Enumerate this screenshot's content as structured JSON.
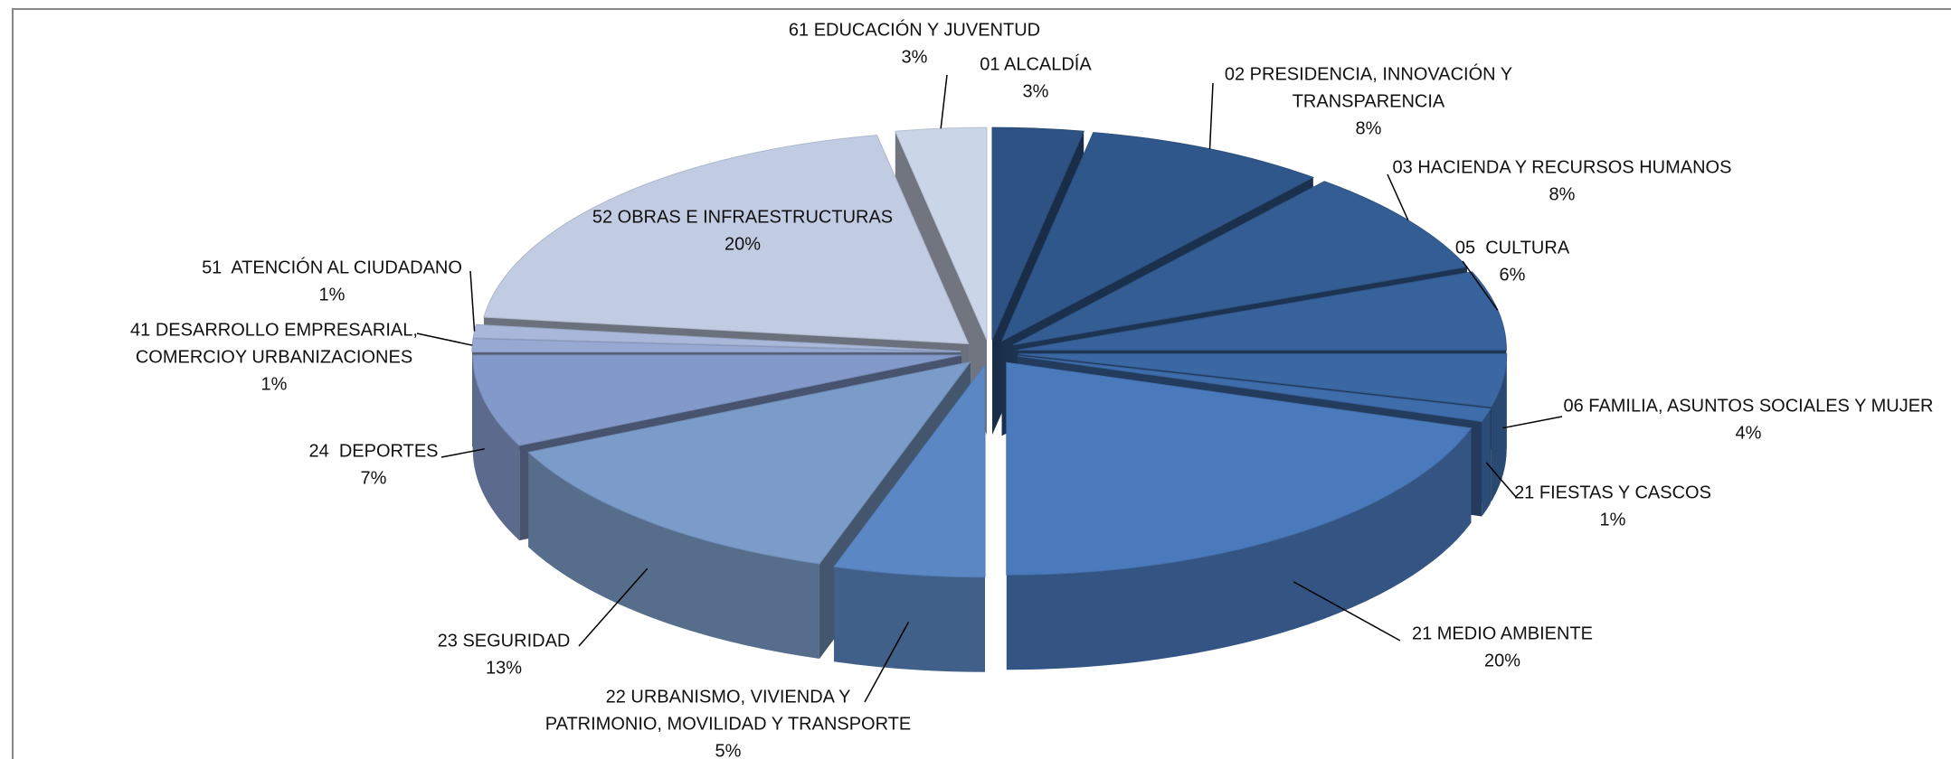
{
  "chart_data": {
    "type": "pie3d",
    "categories": [
      [
        "01 ALCALDÍA"
      ],
      [
        "02 PRESIDENCIA, INNOVACIÓN Y",
        "TRANSPARENCIA"
      ],
      [
        "03 HACIENDA Y RECURSOS HUMANOS"
      ],
      [
        "05  CULTURA"
      ],
      [
        "06 FAMILIA, ASUNTOS SOCIALES Y MUJER"
      ],
      [
        "21 FIESTAS Y CASCOS"
      ],
      [
        "21 MEDIO AMBIENTE"
      ],
      [
        "22 URBANISMO, VIVIENDA Y",
        "PATRIMONIO, MOVILIDAD Y TRANSPORTE"
      ],
      [
        "23 SEGURIDAD"
      ],
      [
        "24  DEPORTES"
      ],
      [
        "41 DESARROLLO EMPRESARIAL,",
        "COMERCIOY URBANIZACIONES"
      ],
      [
        "51  ATENCIÓN AL CIUDADANO"
      ],
      [
        "52 OBRAS E INFRAESTRUCTURAS"
      ],
      [
        "61 EDUCACIÓN Y JUVENTUD"
      ]
    ],
    "values": [
      3,
      8,
      8,
      6,
      4,
      1,
      20,
      5,
      13,
      7,
      1,
      1,
      20,
      3
    ],
    "value_labels": [
      "3%",
      "8%",
      "8%",
      "6%",
      "4%",
      "1%",
      "20%",
      "5%",
      "13%",
      "7%",
      "1%",
      "1%",
      "20%",
      "3%"
    ],
    "colors": [
      "#2e5283",
      "#30578b",
      "#335d93",
      "#37629b",
      "#3b68a3",
      "#3f6dab",
      "#4a7abc",
      "#5b88c4",
      "#7b9cc8",
      "#8399c9",
      "#97a9d3",
      "#a8b7da",
      "#c1cce2",
      "#cbd5e8"
    ]
  }
}
